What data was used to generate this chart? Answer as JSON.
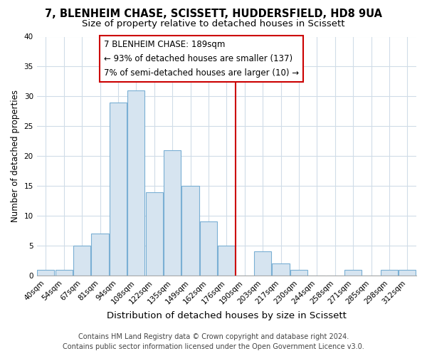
{
  "title": "7, BLENHEIM CHASE, SCISSETT, HUDDERSFIELD, HD8 9UA",
  "subtitle": "Size of property relative to detached houses in Scissett",
  "xlabel": "Distribution of detached houses by size in Scissett",
  "ylabel": "Number of detached properties",
  "bar_labels": [
    "40sqm",
    "54sqm",
    "67sqm",
    "81sqm",
    "94sqm",
    "108sqm",
    "122sqm",
    "135sqm",
    "149sqm",
    "162sqm",
    "176sqm",
    "190sqm",
    "203sqm",
    "217sqm",
    "230sqm",
    "244sqm",
    "258sqm",
    "271sqm",
    "285sqm",
    "298sqm",
    "312sqm"
  ],
  "bar_values": [
    1,
    1,
    5,
    7,
    29,
    31,
    14,
    21,
    15,
    9,
    5,
    0,
    4,
    2,
    1,
    0,
    0,
    1,
    0,
    1,
    1
  ],
  "bar_color": "#d6e4f0",
  "bar_edge_color": "#7aafd4",
  "ylim": [
    0,
    40
  ],
  "yticks": [
    0,
    5,
    10,
    15,
    20,
    25,
    30,
    35,
    40
  ],
  "vline_index": 11,
  "vline_color": "#cc0000",
  "annotation_title": "7 BLENHEIM CHASE: 189sqm",
  "annotation_line1": "← 93% of detached houses are smaller (137)",
  "annotation_line2": "7% of semi-detached houses are larger (10) →",
  "footer_line1": "Contains HM Land Registry data © Crown copyright and database right 2024.",
  "footer_line2": "Contains public sector information licensed under the Open Government Licence v3.0.",
  "bg_color": "#ffffff",
  "plot_bg_color": "#ffffff",
  "grid_color": "#d0dce8",
  "title_fontsize": 10.5,
  "subtitle_fontsize": 9.5,
  "xlabel_fontsize": 9.5,
  "ylabel_fontsize": 8.5,
  "tick_fontsize": 7.5,
  "annotation_fontsize": 8.5,
  "footer_fontsize": 7.0
}
